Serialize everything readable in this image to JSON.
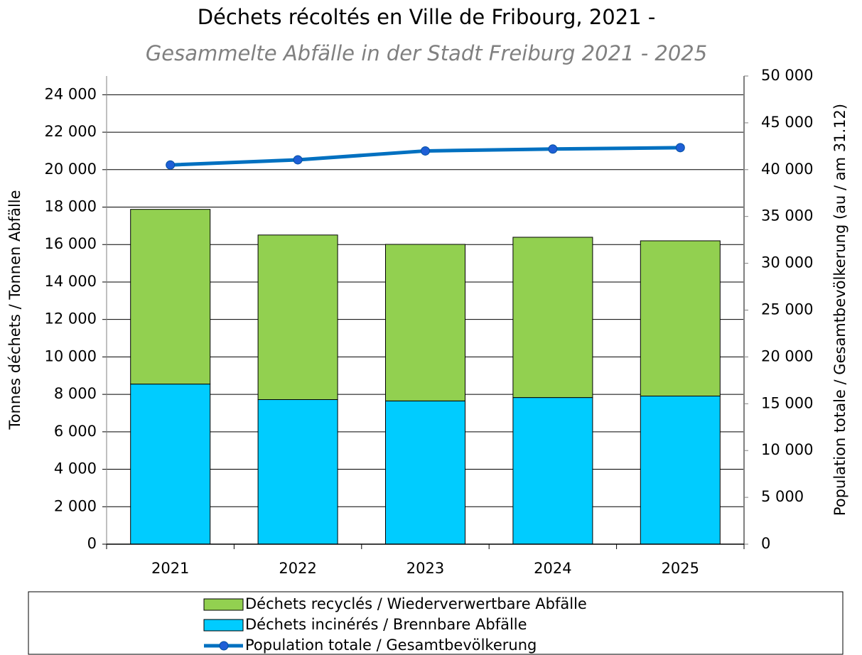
{
  "chart_data": {
    "type": "bar",
    "title": "Déchets récoltés en Ville de Fribourg, 2021 -",
    "subtitle": "Gesammelte Abfälle in der Stadt Freiburg 2021 - 2025",
    "y_label": "Tonnes déchets / Tonnen Abfälle",
    "y2_label": "Population totale / Gesamtbevölkerung (au / am 31.12)",
    "categories": [
      "2021",
      "2022",
      "2023",
      "2024",
      "2025"
    ],
    "stacked": true,
    "series": [
      {
        "name": "Déchets incinérés / Brennbare Abfälle",
        "color": "#00ccff",
        "values": [
          8550,
          7720,
          7650,
          7830,
          7910
        ]
      },
      {
        "name": "Déchets recyclés / Wiederverwertbare Abfälle",
        "color": "#92d050",
        "values": [
          9330,
          8790,
          8360,
          8560,
          8290
        ]
      },
      {
        "name": "Population totale / Gesamtbevölkerung",
        "color": "#0070c0",
        "type": "line",
        "axis": "y2",
        "values": [
          40500,
          41050,
          42000,
          42200,
          42350
        ]
      }
    ],
    "legend_order": [
      1,
      0,
      2
    ],
    "ylim": [
      0,
      25000
    ],
    "yticks": [
      0,
      {
        "value": 2000,
        "label": "2 000"
      },
      {
        "value": 4000,
        "label": "4 000"
      },
      {
        "value": 6000,
        "label": "6 000"
      },
      {
        "value": 8000,
        "label": "8 000"
      },
      {
        "value": 10000,
        "label": "10 000"
      },
      {
        "value": 12000,
        "label": "12 000"
      },
      {
        "value": 14000,
        "label": "14 000"
      },
      {
        "value": 16000,
        "label": "16 000"
      },
      {
        "value": 18000,
        "label": "18 000"
      },
      {
        "value": 20000,
        "label": "20 000"
      },
      {
        "value": 22000,
        "label": "22 000"
      },
      {
        "value": 24000,
        "label": "24 000"
      }
    ],
    "y2lim": [
      0,
      50000
    ],
    "y2ticks": [
      0,
      {
        "value": 5000,
        "label": "5 000"
      },
      {
        "value": 10000,
        "label": "10 000"
      },
      {
        "value": 15000,
        "label": "15 000"
      },
      {
        "value": 20000,
        "label": "20 000"
      },
      {
        "value": 25000,
        "label": "25 000"
      },
      {
        "value": 30000,
        "label": "30 000"
      },
      {
        "value": 35000,
        "label": "35 000"
      },
      {
        "value": 40000,
        "label": "40 000"
      },
      {
        "value": 45000,
        "label": "45 000"
      },
      {
        "value": 50000,
        "label": "50 000"
      }
    ],
    "grid": true,
    "legend": "bottom"
  }
}
